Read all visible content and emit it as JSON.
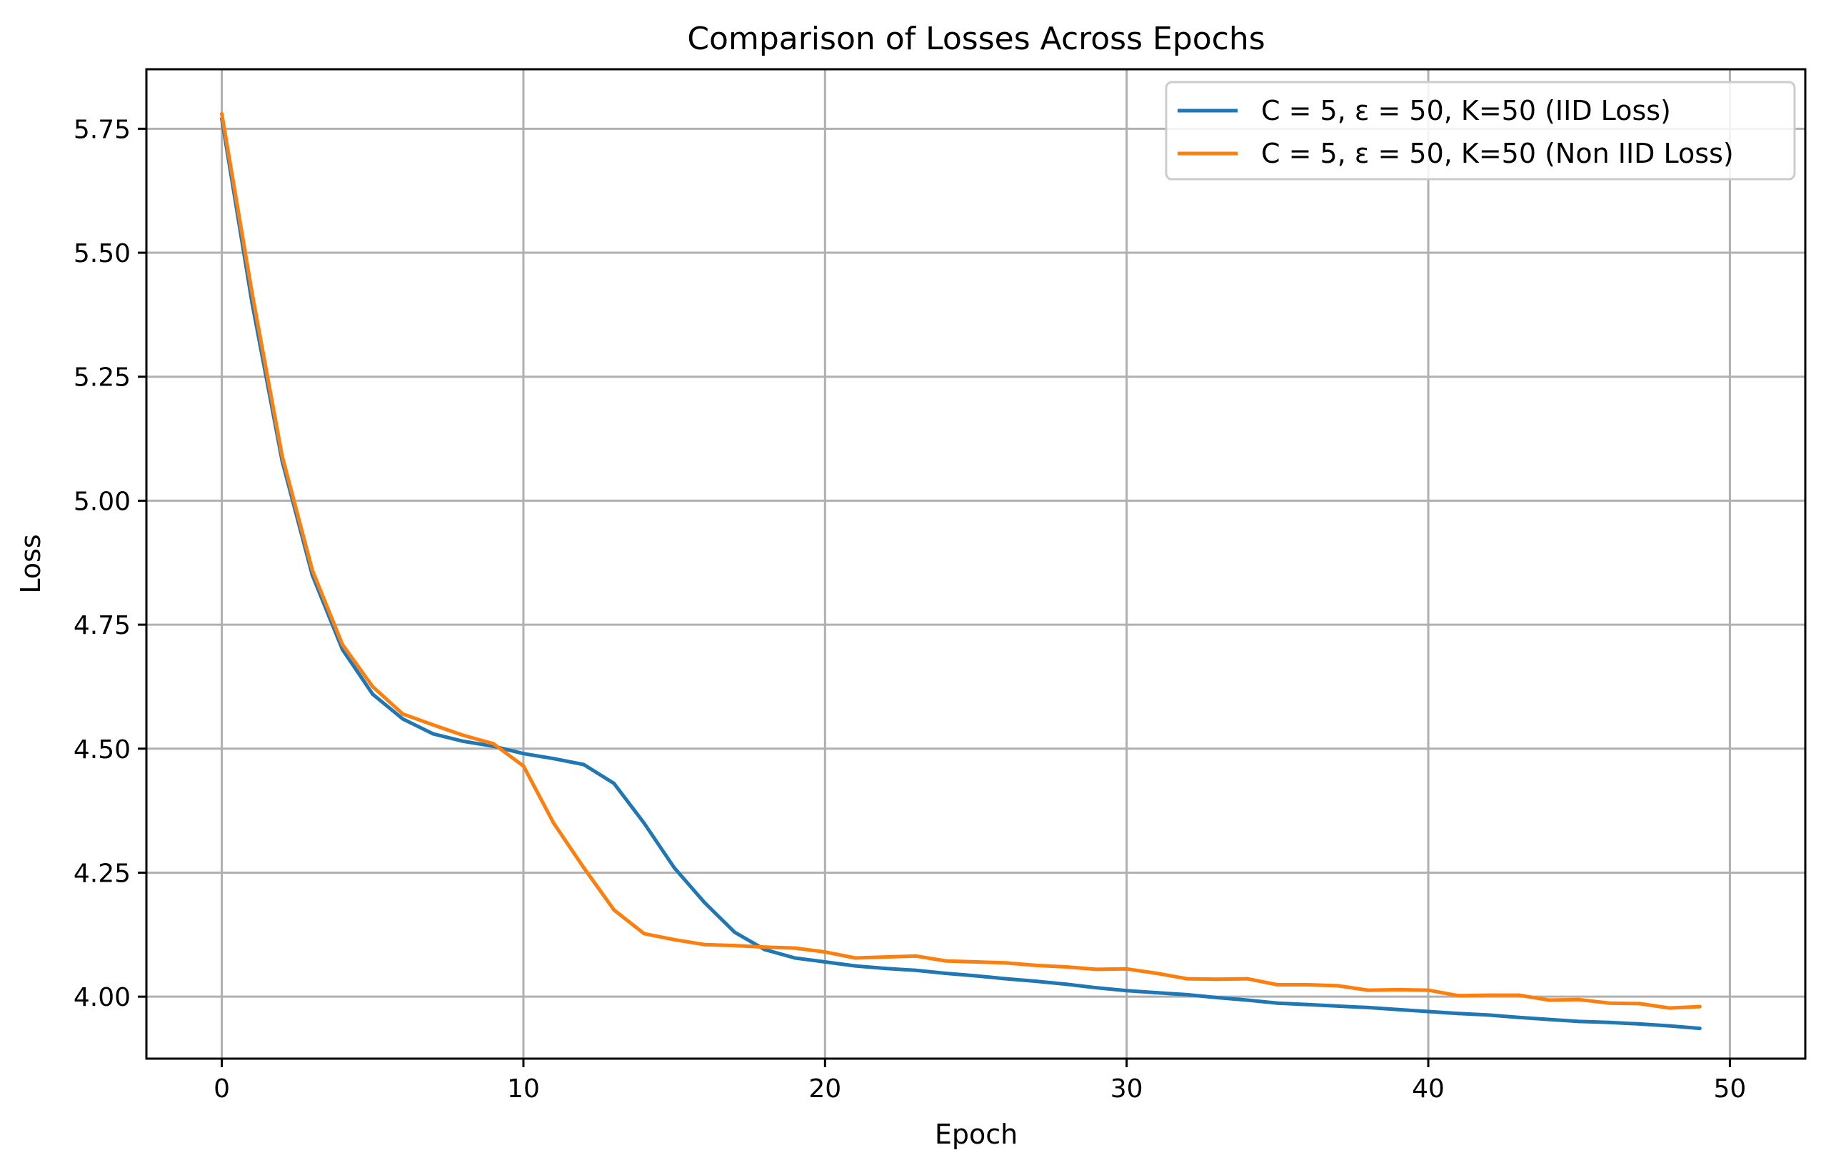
{
  "chart_data": {
    "type": "line",
    "title": "Comparison of Losses Across Epochs",
    "xlabel": "Epoch",
    "ylabel": "Loss",
    "xlim": [
      -2.5,
      52.5
    ],
    "ylim": [
      3.875,
      5.87
    ],
    "xticks": [
      0,
      10,
      20,
      30,
      40,
      50
    ],
    "yticks": [
      4.0,
      4.25,
      4.5,
      4.75,
      5.0,
      5.25,
      5.5,
      5.75
    ],
    "xtick_labels": [
      "0",
      "10",
      "20",
      "30",
      "40",
      "50"
    ],
    "ytick_labels": [
      "4.00",
      "4.25",
      "4.50",
      "4.75",
      "5.00",
      "5.25",
      "5.50",
      "5.75"
    ],
    "grid": true,
    "legend_position": "top-right",
    "x": [
      0,
      1,
      2,
      3,
      4,
      5,
      6,
      7,
      8,
      9,
      10,
      11,
      12,
      13,
      14,
      15,
      16,
      17,
      18,
      19,
      20,
      21,
      22,
      23,
      24,
      25,
      26,
      27,
      28,
      29,
      30,
      31,
      32,
      33,
      34,
      35,
      36,
      37,
      38,
      39,
      40,
      41,
      42,
      43,
      44,
      45,
      46,
      47,
      48,
      49
    ],
    "series": [
      {
        "name": "C = 5, ε = 50, K=50 (IID Loss)",
        "color": "#1f77b4",
        "values": [
          5.77,
          5.4,
          5.08,
          4.85,
          4.7,
          4.61,
          4.56,
          4.53,
          4.515,
          4.505,
          4.49,
          4.48,
          4.468,
          4.43,
          4.35,
          4.26,
          4.19,
          4.13,
          4.095,
          4.078,
          4.07,
          4.062,
          4.057,
          4.053,
          4.047,
          4.042,
          4.036,
          4.031,
          4.025,
          4.018,
          4.012,
          4.008,
          4.004,
          3.998,
          3.993,
          3.987,
          3.984,
          3.981,
          3.978,
          3.974,
          3.97,
          3.966,
          3.963,
          3.958,
          3.954,
          3.95,
          3.948,
          3.945,
          3.941,
          3.936
        ]
      },
      {
        "name": "C = 5, ε = 50, K=50 (Non IID Loss)",
        "color": "#ff7f0e",
        "values": [
          5.78,
          5.42,
          5.09,
          4.86,
          4.71,
          4.625,
          4.57,
          4.548,
          4.527,
          4.51,
          4.465,
          4.35,
          4.26,
          4.175,
          4.127,
          4.115,
          4.105,
          4.103,
          4.1,
          4.098,
          4.09,
          4.078,
          4.08,
          4.082,
          4.072,
          4.07,
          4.068,
          4.063,
          4.06,
          4.055,
          4.056,
          4.047,
          4.036,
          4.035,
          4.036,
          4.024,
          4.024,
          4.022,
          4.013,
          4.014,
          4.013,
          4.002,
          4.003,
          4.003,
          3.993,
          3.994,
          3.987,
          3.986,
          3.977,
          3.98
        ]
      }
    ]
  }
}
